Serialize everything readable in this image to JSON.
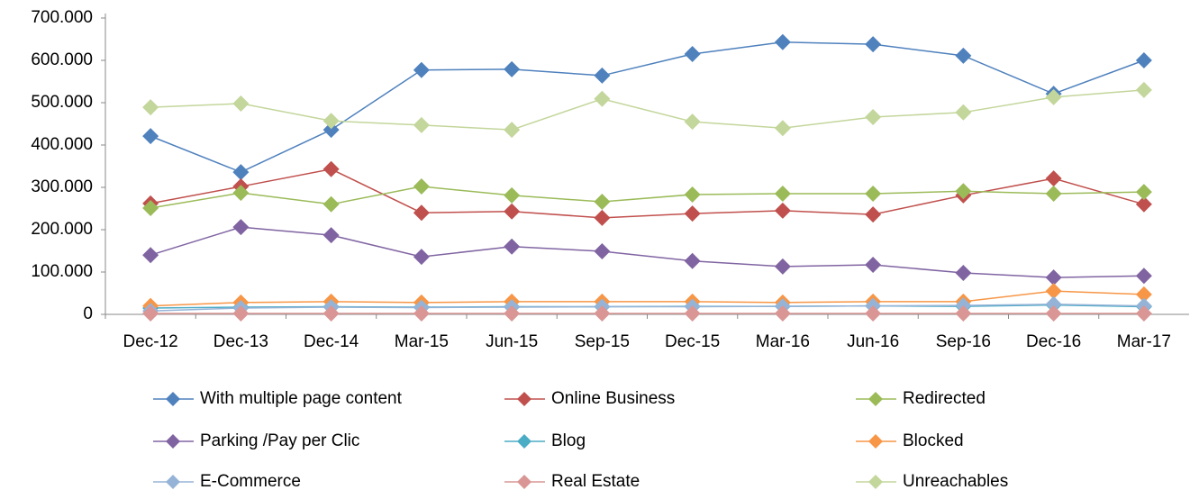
{
  "chart_data": {
    "type": "line",
    "categories": [
      "Dec-12",
      "Dec-13",
      "Dec-14",
      "Mar-15",
      "Jun-15",
      "Sep-15",
      "Dec-15",
      "Mar-16",
      "Jun-16",
      "Sep-16",
      "Dec-16",
      "Mar-17"
    ],
    "ylim": [
      0,
      700000
    ],
    "yticks": [
      0,
      {
        "value": 100000,
        "label": "100.000"
      },
      {
        "value": 200000,
        "label": "200.000"
      },
      {
        "value": 300000,
        "label": "300.000"
      },
      {
        "value": 400000,
        "label": "400.000"
      },
      {
        "value": 500000,
        "label": "500.000"
      },
      {
        "value": 600000,
        "label": "600.000"
      },
      {
        "value": 700000,
        "label": "700.000"
      }
    ],
    "grid": false,
    "legend": "bottom",
    "series": [
      {
        "name": "With multiple page content",
        "color": "#4f81bd",
        "values": [
          421000,
          336000,
          436000,
          577000,
          579000,
          564000,
          615000,
          643000,
          638000,
          611000,
          521000,
          600000
        ]
      },
      {
        "name": "Online Business",
        "color": "#c0504d",
        "values": [
          262000,
          302000,
          343000,
          240000,
          243000,
          228000,
          238000,
          245000,
          236000,
          281000,
          321000,
          260000
        ]
      },
      {
        "name": "Redirected",
        "color": "#9bbb59",
        "values": [
          251000,
          287000,
          260000,
          302000,
          281000,
          266000,
          283000,
          285000,
          285000,
          291000,
          285000,
          289000
        ]
      },
      {
        "name": "Parking /Pay per Clic",
        "color": "#8064a2",
        "values": [
          140000,
          206000,
          187000,
          136000,
          160000,
          149000,
          126000,
          113000,
          117000,
          98000,
          87000,
          91000
        ]
      },
      {
        "name": "Blog",
        "color": "#4bacc6",
        "values": [
          15000,
          17000,
          18000,
          17000,
          18000,
          18000,
          19000,
          19000,
          20000,
          19000,
          22000,
          18000
        ]
      },
      {
        "name": "Blocked",
        "color": "#f79646",
        "values": [
          20000,
          28000,
          30000,
          28000,
          30000,
          30000,
          30000,
          28000,
          30000,
          30000,
          55000,
          47000
        ]
      },
      {
        "name": "E-Commerce",
        "color": "#95b3d7",
        "values": [
          8000,
          15000,
          17000,
          16000,
          17000,
          18000,
          18000,
          19000,
          20000,
          21000,
          24000,
          20000
        ]
      },
      {
        "name": "Real Estate",
        "color": "#d99694",
        "values": [
          2000,
          2000,
          2000,
          2000,
          2000,
          2000,
          2000,
          2000,
          2000,
          2000,
          2000,
          2000
        ]
      },
      {
        "name": "Unreachables",
        "color": "#c3d69b",
        "values": [
          489000,
          498000,
          457000,
          447000,
          436000,
          509000,
          455000,
          440000,
          466000,
          477000,
          513000,
          530000
        ]
      }
    ]
  }
}
